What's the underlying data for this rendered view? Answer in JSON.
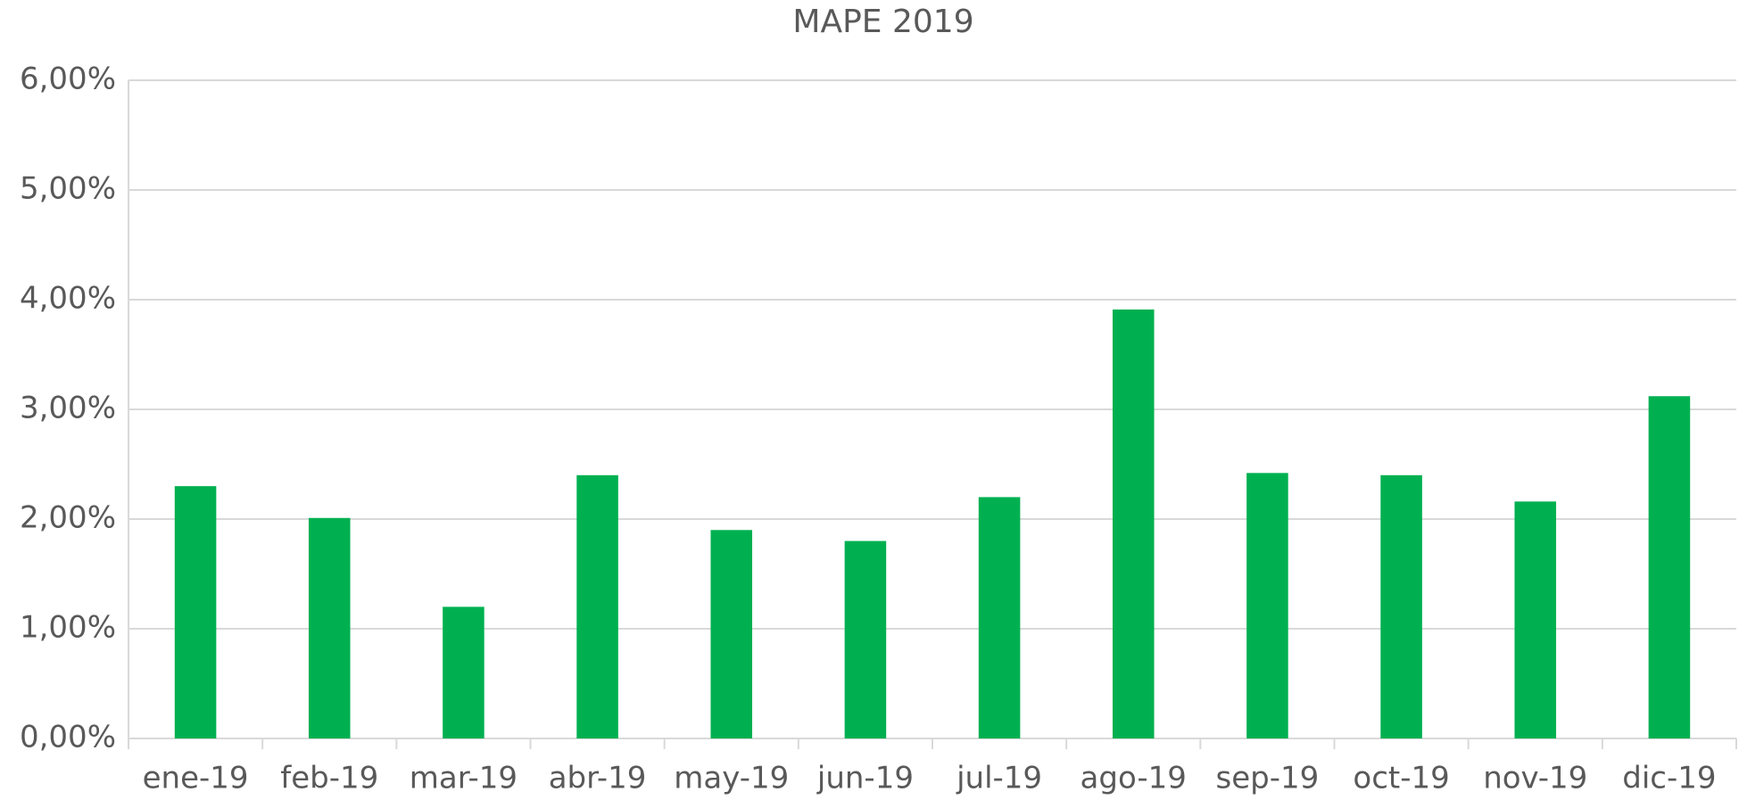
{
  "chart_data": {
    "type": "bar",
    "title": "MAPE 2019",
    "categories": [
      "ene-19",
      "feb-19",
      "mar-19",
      "abr-19",
      "may-19",
      "jun-19",
      "jul-19",
      "ago-19",
      "sep-19",
      "oct-19",
      "nov-19",
      "dic-19"
    ],
    "values": [
      2.3,
      2.01,
      1.2,
      2.4,
      1.9,
      1.8,
      2.2,
      3.91,
      2.42,
      2.4,
      2.16,
      3.12
    ],
    "color": "#00b050",
    "ylim": [
      0,
      6
    ],
    "yticks": [
      {
        "value": 0,
        "label": "0,00%"
      },
      {
        "value": 1,
        "label": "1,00%"
      },
      {
        "value": 2,
        "label": "2,00%"
      },
      {
        "value": 3,
        "label": "3,00%"
      },
      {
        "value": 4,
        "label": "4,00%"
      },
      {
        "value": 5,
        "label": "5,00%"
      },
      {
        "value": 6,
        "label": "6,00%"
      }
    ],
    "grid": true
  }
}
